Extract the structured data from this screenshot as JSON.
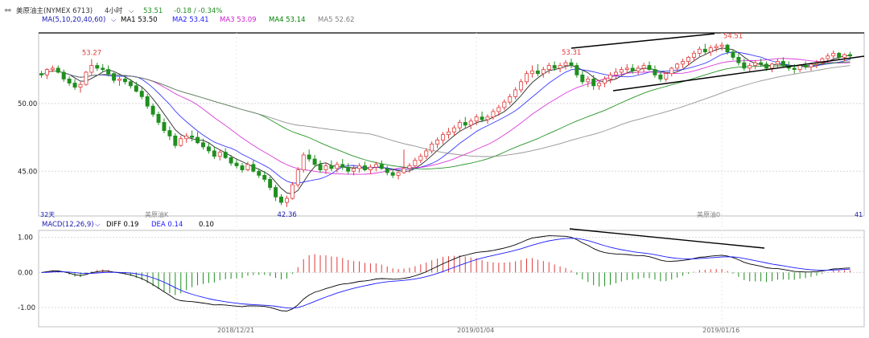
{
  "header": {
    "icon": "link-icon",
    "symbol": "美原油主(NYMEX 6713)",
    "period": "4小时",
    "last": "53.51",
    "change": "-0.18 / -0.34%"
  },
  "ma_legend": {
    "title": "MA(5,10,20,40,60)",
    "items": [
      {
        "label": "MA1 53.50",
        "color": "#000000"
      },
      {
        "label": "MA2 53.41",
        "color": "#1a1aff"
      },
      {
        "label": "MA3 53.09",
        "color": "#d21ad2"
      },
      {
        "label": "MA4 53.14",
        "color": "#008000"
      },
      {
        "label": "MA5 52.62",
        "color": "#808080"
      }
    ]
  },
  "macd_legend": {
    "title": "MACD(12,26,9)",
    "diff": "DIFF 0.19",
    "dea": "DEA 0.14",
    "macd": "0.10"
  },
  "labels": {
    "left_count": "32天",
    "contract_1": "美原油K",
    "contract_2": "美原油0",
    "right_count": "41"
  },
  "colors": {
    "up": "#e23b3b",
    "down": "#1f8f1f",
    "grid": "#d8d8d8",
    "axis_text": "#222222"
  },
  "chart_data": [
    {
      "type": "candlestick",
      "title": "",
      "xlabel": "",
      "ylabel": "",
      "ylim": [
        41.7,
        55.2
      ],
      "y_ticks": [
        "50.00",
        "45.00"
      ],
      "y_tick_values": [
        50,
        45
      ],
      "annotations": [
        {
          "text": "53.27",
          "index": 9,
          "y": 53.27
        },
        {
          "text": "42.36",
          "index": 44,
          "y": 42.36
        },
        {
          "text": "53.31",
          "index": 95,
          "y": 53.31
        },
        {
          "text": "54.51",
          "index": 124,
          "y": 54.51
        }
      ],
      "candles": [
        [
          52.2,
          52.4,
          51.9,
          52.1
        ],
        [
          52.1,
          52.6,
          51.8,
          52.5
        ],
        [
          52.5,
          52.8,
          52.3,
          52.6
        ],
        [
          52.6,
          52.8,
          52.2,
          52.3
        ],
        [
          52.3,
          52.5,
          51.6,
          51.8
        ],
        [
          51.8,
          52.0,
          51.3,
          51.5
        ],
        [
          51.5,
          51.8,
          51.0,
          51.2
        ],
        [
          51.2,
          51.6,
          50.8,
          51.4
        ],
        [
          51.4,
          52.4,
          51.3,
          52.3
        ],
        [
          52.3,
          53.27,
          52.1,
          52.8
        ],
        [
          52.8,
          53.0,
          52.4,
          52.6
        ],
        [
          52.6,
          52.9,
          52.3,
          52.5
        ],
        [
          52.5,
          52.8,
          52.0,
          52.2
        ],
        [
          52.2,
          52.3,
          51.5,
          51.7
        ],
        [
          51.7,
          52.0,
          51.3,
          51.8
        ],
        [
          51.8,
          52.1,
          51.4,
          51.6
        ],
        [
          51.6,
          51.8,
          51.1,
          51.3
        ],
        [
          51.3,
          51.6,
          50.8,
          50.9
        ],
        [
          50.9,
          51.2,
          50.3,
          50.5
        ],
        [
          50.5,
          50.7,
          49.6,
          49.8
        ],
        [
          49.8,
          50.0,
          49.0,
          49.2
        ],
        [
          49.2,
          49.4,
          48.4,
          48.6
        ],
        [
          48.6,
          48.9,
          47.8,
          48.0
        ],
        [
          48.0,
          48.3,
          47.3,
          47.6
        ],
        [
          47.6,
          47.8,
          46.7,
          46.9
        ],
        [
          46.9,
          47.6,
          46.8,
          47.4
        ],
        [
          47.4,
          47.8,
          47.1,
          47.6
        ],
        [
          47.6,
          48.0,
          47.2,
          47.5
        ],
        [
          47.5,
          47.9,
          47.0,
          47.1
        ],
        [
          47.1,
          47.4,
          46.6,
          46.8
        ],
        [
          46.8,
          47.1,
          46.3,
          46.5
        ],
        [
          46.5,
          46.8,
          45.9,
          46.1
        ],
        [
          46.1,
          46.6,
          45.8,
          46.4
        ],
        [
          46.4,
          46.7,
          45.9,
          46.0
        ],
        [
          46.0,
          46.2,
          45.4,
          45.6
        ],
        [
          45.6,
          45.9,
          45.2,
          45.4
        ],
        [
          45.4,
          45.6,
          44.9,
          45.1
        ],
        [
          45.1,
          45.7,
          45.0,
          45.5
        ],
        [
          45.5,
          45.8,
          44.9,
          45.0
        ],
        [
          45.0,
          45.2,
          44.5,
          44.7
        ],
        [
          44.7,
          45.0,
          44.2,
          44.4
        ],
        [
          44.4,
          44.6,
          43.6,
          43.8
        ],
        [
          43.8,
          44.0,
          42.8,
          43.1
        ],
        [
          43.1,
          43.3,
          42.5,
          42.7
        ],
        [
          42.7,
          43.2,
          42.36,
          43.0
        ],
        [
          43.0,
          44.2,
          42.9,
          44.0
        ],
        [
          44.0,
          45.3,
          43.8,
          45.1
        ],
        [
          45.1,
          46.4,
          44.9,
          46.2
        ],
        [
          46.2,
          46.6,
          45.7,
          45.9
        ],
        [
          45.9,
          46.2,
          45.3,
          45.5
        ],
        [
          45.5,
          45.8,
          44.9,
          45.1
        ],
        [
          45.1,
          45.6,
          44.8,
          45.4
        ],
        [
          45.4,
          45.8,
          45.0,
          45.2
        ],
        [
          45.2,
          45.7,
          44.9,
          45.5
        ],
        [
          45.5,
          45.9,
          45.1,
          45.3
        ],
        [
          45.3,
          45.6,
          44.8,
          45.0
        ],
        [
          45.0,
          45.4,
          44.7,
          45.2
        ],
        [
          45.2,
          45.6,
          44.9,
          45.4
        ],
        [
          45.4,
          45.7,
          45.0,
          45.1
        ],
        [
          45.1,
          45.5,
          44.8,
          45.3
        ],
        [
          45.3,
          45.7,
          45.0,
          45.5
        ],
        [
          45.5,
          45.8,
          45.1,
          45.2
        ],
        [
          45.2,
          45.4,
          44.7,
          44.9
        ],
        [
          44.9,
          45.2,
          44.5,
          44.7
        ],
        [
          44.7,
          45.0,
          44.4,
          44.9
        ],
        [
          44.9,
          46.6,
          44.8,
          45.2
        ],
        [
          45.2,
          45.6,
          44.9,
          45.4
        ],
        [
          45.4,
          46.0,
          45.2,
          45.8
        ],
        [
          45.8,
          46.3,
          45.6,
          46.1
        ],
        [
          46.1,
          46.7,
          45.9,
          46.5
        ],
        [
          46.5,
          47.2,
          46.3,
          47.0
        ],
        [
          47.0,
          47.5,
          46.7,
          47.3
        ],
        [
          47.3,
          47.9,
          47.0,
          47.7
        ],
        [
          47.7,
          48.2,
          47.4,
          47.9
        ],
        [
          47.9,
          48.4,
          47.6,
          48.2
        ],
        [
          48.2,
          48.8,
          47.9,
          48.6
        ],
        [
          48.6,
          49.0,
          48.2,
          48.4
        ],
        [
          48.4,
          48.9,
          48.1,
          48.7
        ],
        [
          48.7,
          49.2,
          48.4,
          49.0
        ],
        [
          49.0,
          49.4,
          48.6,
          48.8
        ],
        [
          48.8,
          49.2,
          48.5,
          49.0
        ],
        [
          49.0,
          49.6,
          48.8,
          49.4
        ],
        [
          49.4,
          49.9,
          49.1,
          49.7
        ],
        [
          49.7,
          50.3,
          49.5,
          50.1
        ],
        [
          50.1,
          50.7,
          49.9,
          50.5
        ],
        [
          50.5,
          51.2,
          50.3,
          51.0
        ],
        [
          51.0,
          51.8,
          50.8,
          51.6
        ],
        [
          51.6,
          52.4,
          51.4,
          52.2
        ],
        [
          52.2,
          52.8,
          51.9,
          52.4
        ],
        [
          52.4,
          52.9,
          52.0,
          52.2
        ],
        [
          52.2,
          52.7,
          51.9,
          52.5
        ],
        [
          52.5,
          53.0,
          52.2,
          52.8
        ],
        [
          52.8,
          53.1,
          52.4,
          52.6
        ],
        [
          52.6,
          53.0,
          52.3,
          52.8
        ],
        [
          52.8,
          53.2,
          52.5,
          53.0
        ],
        [
          53.0,
          53.31,
          52.6,
          52.8
        ],
        [
          52.8,
          53.0,
          51.9,
          52.1
        ],
        [
          52.1,
          52.4,
          51.4,
          51.6
        ],
        [
          51.6,
          52.0,
          51.2,
          51.8
        ],
        [
          51.8,
          52.1,
          51.0,
          51.3
        ],
        [
          51.3,
          51.7,
          51.0,
          51.5
        ],
        [
          51.5,
          52.0,
          51.2,
          51.8
        ],
        [
          51.8,
          52.3,
          51.5,
          52.1
        ],
        [
          52.1,
          52.6,
          51.8,
          52.3
        ],
        [
          52.3,
          52.7,
          52.0,
          52.5
        ],
        [
          52.5,
          52.9,
          52.2,
          52.6
        ],
        [
          52.6,
          52.9,
          52.2,
          52.4
        ],
        [
          52.4,
          52.8,
          52.1,
          52.6
        ],
        [
          52.6,
          53.0,
          52.3,
          52.8
        ],
        [
          52.8,
          53.1,
          52.4,
          52.5
        ],
        [
          52.5,
          52.8,
          51.9,
          52.1
        ],
        [
          52.1,
          52.4,
          51.6,
          51.8
        ],
        [
          51.8,
          52.3,
          51.6,
          52.2
        ],
        [
          52.2,
          52.7,
          52.0,
          52.6
        ],
        [
          52.6,
          53.0,
          52.3,
          52.9
        ],
        [
          52.9,
          53.3,
          52.6,
          53.1
        ],
        [
          53.1,
          53.5,
          52.8,
          53.4
        ],
        [
          53.4,
          53.9,
          53.1,
          53.7
        ],
        [
          53.7,
          54.2,
          53.4,
          54.0
        ],
        [
          54.0,
          54.4,
          53.6,
          53.8
        ],
        [
          53.8,
          54.3,
          53.5,
          54.1
        ],
        [
          54.1,
          54.4,
          53.8,
          54.2
        ],
        [
          54.2,
          54.51,
          53.9,
          54.3
        ],
        [
          54.3,
          54.4,
          53.6,
          53.8
        ],
        [
          53.8,
          54.0,
          53.2,
          53.4
        ],
        [
          53.4,
          53.7,
          52.8,
          53.0
        ],
        [
          53.0,
          53.3,
          52.4,
          52.6
        ],
        [
          52.6,
          53.0,
          52.3,
          52.8
        ],
        [
          52.8,
          53.2,
          52.5,
          53.0
        ],
        [
          53.0,
          53.3,
          52.7,
          52.9
        ],
        [
          52.9,
          53.1,
          52.4,
          52.6
        ],
        [
          52.6,
          53.0,
          52.3,
          52.9
        ],
        [
          52.9,
          53.3,
          52.6,
          53.1
        ],
        [
          53.1,
          53.4,
          52.7,
          52.8
        ],
        [
          52.8,
          53.1,
          52.4,
          52.6
        ],
        [
          52.6,
          52.9,
          52.2,
          52.5
        ],
        [
          52.5,
          52.9,
          52.3,
          52.8
        ],
        [
          52.8,
          53.1,
          52.5,
          52.7
        ],
        [
          52.7,
          53.0,
          52.4,
          52.9
        ],
        [
          52.9,
          53.2,
          52.6,
          53.0
        ],
        [
          53.0,
          53.4,
          52.8,
          53.3
        ],
        [
          53.3,
          53.7,
          53.0,
          53.5
        ],
        [
          53.5,
          53.9,
          53.2,
          53.7
        ],
        [
          53.7,
          53.8,
          53.2,
          53.4
        ],
        [
          53.4,
          53.7,
          53.1,
          53.6
        ],
        [
          53.6,
          53.8,
          53.2,
          53.5
        ]
      ]
    },
    {
      "type": "bar",
      "title": "",
      "xlabel": "",
      "ylabel": "",
      "ylim": [
        -1.55,
        1.2
      ],
      "y_ticks": [
        "1.00",
        "0.00",
        "-1.00"
      ],
      "y_tick_values": [
        1,
        0,
        -1
      ],
      "x_tick_labels": [
        "2018/12/21",
        "2019/01/04",
        "2019/01/16"
      ],
      "x_tick_index": [
        35,
        78,
        122
      ]
    }
  ]
}
